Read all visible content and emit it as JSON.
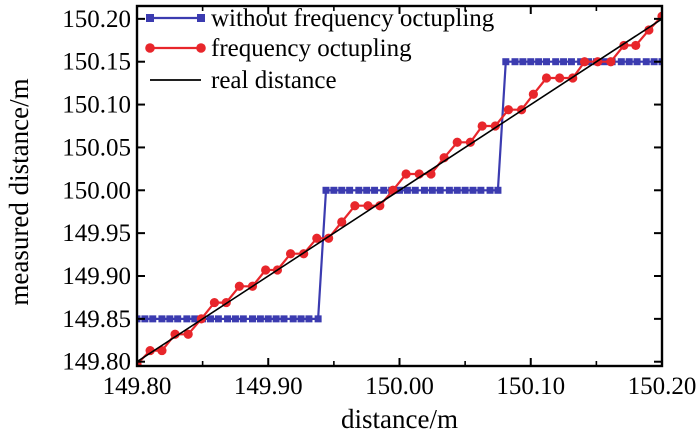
{
  "chart_data": {
    "type": "line",
    "xlabel": "distance/m",
    "ylabel": "measured distance/m",
    "xlim": [
      149.8,
      150.2
    ],
    "ylim": [
      149.795,
      150.215
    ],
    "xticks": [
      149.8,
      149.9,
      150.0,
      150.1,
      150.2
    ],
    "xtick_labels": [
      "149.80",
      "149.90",
      "150.00",
      "150.10",
      "150.20"
    ],
    "yticks": [
      149.8,
      149.85,
      149.9,
      149.95,
      150.0,
      150.05,
      150.1,
      150.15,
      150.2
    ],
    "ytick_labels": [
      "149.80",
      "149.85",
      "149.90",
      "149.95",
      "150.00",
      "150.05",
      "150.10",
      "150.15",
      "150.20"
    ],
    "grid": false,
    "legend_position": "top-left",
    "series": [
      {
        "name": "without frequency octupling",
        "color": "#3b3bb0",
        "marker": "square",
        "x": [
          149.8,
          149.806,
          149.812,
          149.819,
          149.825,
          149.831,
          149.838,
          149.844,
          149.85,
          149.856,
          149.862,
          149.869,
          149.875,
          149.881,
          149.888,
          149.894,
          149.9,
          149.906,
          149.912,
          149.919,
          149.925,
          149.931,
          149.938,
          149.944,
          149.95,
          149.956,
          149.962,
          149.969,
          149.975,
          149.981,
          149.988,
          149.994,
          150.0,
          150.006,
          150.012,
          150.019,
          150.025,
          150.031,
          150.038,
          150.044,
          150.05,
          150.056,
          150.062,
          150.069,
          150.075,
          150.081,
          150.088,
          150.094,
          150.1,
          150.106,
          150.112,
          150.119,
          150.125,
          150.131,
          150.138,
          150.144,
          150.15,
          150.156,
          150.162,
          150.169,
          150.175,
          150.181,
          150.188,
          150.194,
          150.2
        ],
        "y": [
          149.85,
          149.85,
          149.85,
          149.85,
          149.85,
          149.85,
          149.85,
          149.85,
          149.85,
          149.85,
          149.85,
          149.85,
          149.85,
          149.85,
          149.85,
          149.85,
          149.85,
          149.85,
          149.85,
          149.85,
          149.85,
          149.85,
          149.85,
          150.0,
          150.0,
          150.0,
          150.0,
          150.0,
          150.0,
          150.0,
          150.0,
          150.0,
          150.0,
          150.0,
          150.0,
          150.0,
          150.0,
          150.0,
          150.0,
          150.0,
          150.0,
          150.0,
          150.0,
          150.0,
          150.0,
          150.15,
          150.15,
          150.15,
          150.15,
          150.15,
          150.15,
          150.15,
          150.15,
          150.15,
          150.15,
          150.15,
          150.15,
          150.15,
          150.15,
          150.15,
          150.15,
          150.15,
          150.15,
          150.15,
          150.15
        ]
      },
      {
        "name": "frequency octupling",
        "color": "#e8262b",
        "marker": "circle",
        "x": [
          149.8,
          149.81,
          149.819,
          149.829,
          149.839,
          149.849,
          149.859,
          149.868,
          149.878,
          149.888,
          149.898,
          149.907,
          149.917,
          149.927,
          149.937,
          149.946,
          149.956,
          149.966,
          149.976,
          149.985,
          149.995,
          150.005,
          150.015,
          150.024,
          150.034,
          150.044,
          150.054,
          150.063,
          150.073,
          150.083,
          150.093,
          150.102,
          150.112,
          150.122,
          150.132,
          150.141,
          150.151,
          150.161,
          150.171,
          150.18,
          150.19,
          150.2
        ],
        "y": [
          149.797,
          149.813,
          149.813,
          149.832,
          149.832,
          149.85,
          149.869,
          149.869,
          149.888,
          149.888,
          149.907,
          149.907,
          149.926,
          149.926,
          149.944,
          149.944,
          149.963,
          149.982,
          149.982,
          149.982,
          150.0,
          150.019,
          150.019,
          150.019,
          150.038,
          150.056,
          150.056,
          150.075,
          150.075,
          150.094,
          150.094,
          150.112,
          150.131,
          150.131,
          150.131,
          150.15,
          150.15,
          150.15,
          150.169,
          150.169,
          150.187,
          150.203
        ]
      },
      {
        "name": "real distance",
        "color": "#000000",
        "marker": "none",
        "x": [
          149.8,
          150.2
        ],
        "y": [
          149.8,
          150.2
        ]
      }
    ]
  }
}
